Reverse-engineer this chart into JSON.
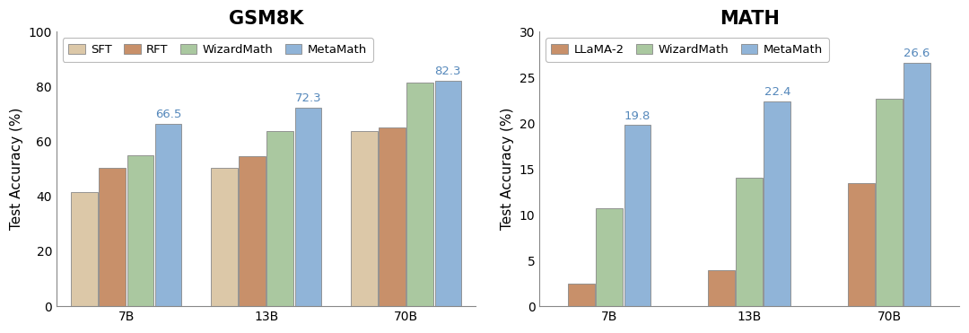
{
  "gsm8k": {
    "title": "GSM8K",
    "categories": [
      "7B",
      "13B",
      "70B"
    ],
    "series": {
      "SFT": [
        41.6,
        50.3,
        63.9
      ],
      "RFT": [
        50.3,
        54.8,
        65.2
      ],
      "WizardMath": [
        54.9,
        63.9,
        81.6
      ],
      "MetaMath": [
        66.5,
        72.3,
        82.3
      ]
    },
    "metamath_labels": [
      66.5,
      72.3,
      82.3
    ],
    "colors": {
      "SFT": "#dcc8a8",
      "RFT": "#c8906a",
      "WizardMath": "#aac8a0",
      "MetaMath": "#90b4d8"
    },
    "ylabel": "Test Accuracy (%)",
    "ylim": [
      0,
      100
    ],
    "yticks": [
      0,
      20,
      40,
      60,
      80,
      100
    ],
    "legend_ncol": 4
  },
  "math": {
    "title": "MATH",
    "categories": [
      "7B",
      "13B",
      "70B"
    ],
    "series": {
      "LLaMA-2": [
        2.5,
        3.9,
        13.5
      ],
      "WizardMath": [
        10.7,
        14.0,
        22.7
      ],
      "MetaMath": [
        19.8,
        22.4,
        26.6
      ]
    },
    "metamath_labels": [
      19.8,
      22.4,
      26.6
    ],
    "colors": {
      "LLaMA-2": "#c8906a",
      "WizardMath": "#aac8a0",
      "MetaMath": "#90b4d8"
    },
    "ylabel": "Test Accuracy (%)",
    "ylim": [
      0,
      30
    ],
    "yticks": [
      0,
      5,
      10,
      15,
      20,
      25,
      30
    ],
    "legend_ncol": 3
  },
  "label_color": "#5588bb",
  "bar_edgecolor": "#888888",
  "bar_edgewidth": 0.6,
  "bar_width": 0.19,
  "bar_spacing": 0.01,
  "background_color": "#ffffff",
  "axes_facecolor": "#ffffff",
  "title_fontsize": 15,
  "axis_fontsize": 11,
  "tick_fontsize": 10,
  "legend_fontsize": 9.5,
  "label_fontsize": 9.5,
  "spine_color": "#888888"
}
